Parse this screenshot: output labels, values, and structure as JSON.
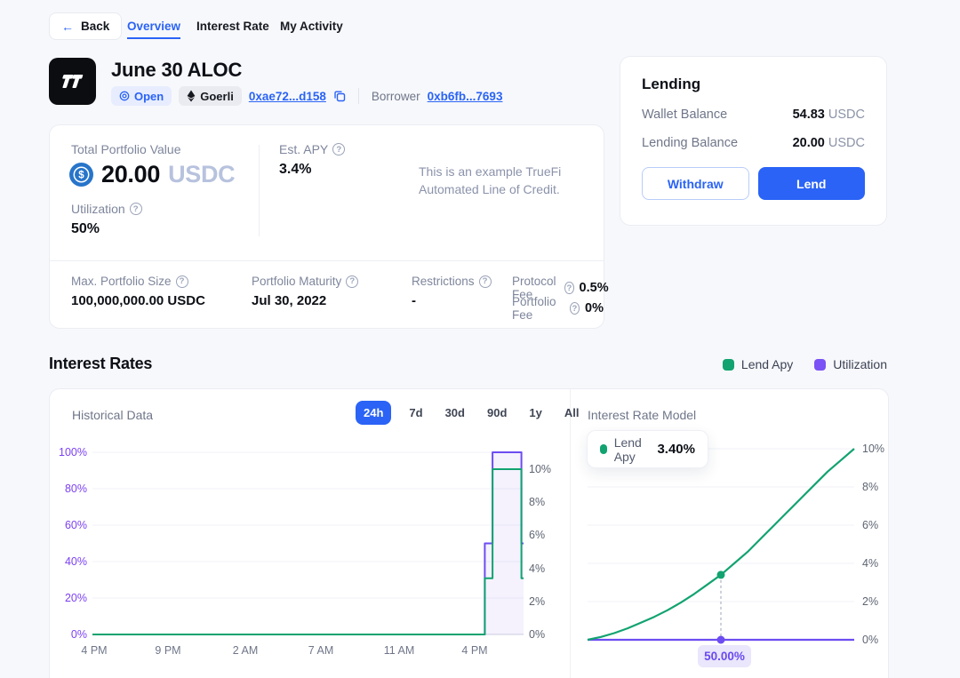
{
  "nav": {
    "back_label": "Back",
    "tabs": [
      {
        "label": "Overview",
        "active": true
      },
      {
        "label": "Interest Rate",
        "active": false
      },
      {
        "label": "My Activity",
        "active": false
      }
    ]
  },
  "header": {
    "title": "June 30 ALOC",
    "status_badge": "Open",
    "network_badge": "Goerli",
    "contract_address": "0xae72...d158",
    "borrower_label": "Borrower",
    "borrower_address": "0xb6fb...7693"
  },
  "lending_panel": {
    "title": "Lending",
    "wallet_balance_label": "Wallet Balance",
    "wallet_balance_value": "54.83",
    "wallet_balance_unit": "USDC",
    "lending_balance_label": "Lending Balance",
    "lending_balance_value": "20.00",
    "lending_balance_unit": "USDC",
    "withdraw_label": "Withdraw",
    "lend_label": "Lend"
  },
  "portfolio_card": {
    "total_value_label": "Total Portfolio Value",
    "currency_symbol": "$",
    "total_value": "20.00",
    "total_value_unit": "USDC",
    "utilization_label": "Utilization",
    "utilization_value": "50%",
    "apy_label": "Est. APY",
    "apy_value": "3.4%",
    "description_line1": "This is an example TrueFi",
    "description_line2": "Automated Line of Credit.",
    "max_size_label": "Max. Portfolio Size",
    "max_size_value": "100,000,000.00 USDC",
    "maturity_label": "Portfolio Maturity",
    "maturity_value": "Jul 30, 2022",
    "restrictions_label": "Restrictions",
    "restrictions_value": "-",
    "protocol_fee_label": "Protocol Fee",
    "protocol_fee_value": "0.5%",
    "portfolio_fee_label": "Portfolio Fee",
    "portfolio_fee_value": "0%"
  },
  "interest_section": {
    "heading": "Interest Rates",
    "legend": [
      {
        "label": "Lend Apy",
        "color": "#12a370"
      },
      {
        "label": "Utilization",
        "color": "#7a52f5"
      }
    ],
    "historical_label": "Historical Data",
    "ranges": [
      {
        "label": "24h",
        "active": true
      },
      {
        "label": "7d",
        "active": false
      },
      {
        "label": "30d",
        "active": false
      },
      {
        "label": "90d",
        "active": false
      },
      {
        "label": "1y",
        "active": false
      },
      {
        "label": "All",
        "active": false
      }
    ],
    "model_label": "Interest Rate Model",
    "tooltip_label": "Lend Apy",
    "tooltip_value": "3.40%",
    "marker_label": "50.00%"
  },
  "chart_data": [
    {
      "type": "line",
      "name": "historical-data",
      "title": "Historical Data",
      "time_range": "24h",
      "x_ticks": [
        "4 PM",
        "9 PM",
        "2 AM",
        "7 AM",
        "11 AM",
        "4 PM"
      ],
      "left_axis": {
        "label": "Utilization",
        "ticks": [
          "100%",
          "80%",
          "60%",
          "40%",
          "20%",
          "0%"
        ],
        "range": [
          0,
          100
        ]
      },
      "right_axis": {
        "label": "Lend APY",
        "ticks": [
          "10%",
          "8%",
          "6%",
          "4%",
          "2%",
          "0%"
        ],
        "range": [
          0,
          11
        ]
      },
      "series": [
        {
          "name": "Utilization",
          "axis": "left",
          "color": "#6d4cf2",
          "step_points": [
            [
              0,
              0
            ],
            [
              0.91,
              0
            ],
            [
              0.91,
              50
            ],
            [
              0.928,
              50
            ],
            [
              0.928,
              100
            ],
            [
              0.995,
              100
            ],
            [
              0.995,
              50
            ],
            [
              1,
              50
            ]
          ]
        },
        {
          "name": "Lend Apy",
          "axis": "right",
          "color": "#12a370",
          "step_points": [
            [
              0,
              0
            ],
            [
              0.91,
              0
            ],
            [
              0.91,
              3.4
            ],
            [
              0.928,
              3.4
            ],
            [
              0.928,
              10
            ],
            [
              0.995,
              10
            ],
            [
              0.995,
              3.4
            ],
            [
              1,
              3.4
            ]
          ]
        }
      ]
    },
    {
      "type": "line",
      "name": "interest-rate-model",
      "title": "Interest Rate Model",
      "x_axis": {
        "label": "Utilization",
        "range": [
          0,
          100
        ]
      },
      "y_axis": {
        "ticks": [
          "10%",
          "8%",
          "6%",
          "4%",
          "2%",
          "0%"
        ],
        "range": [
          0,
          10
        ]
      },
      "series": [
        {
          "name": "Lend Apy",
          "color": "#12a370",
          "points": [
            [
              0,
              0
            ],
            [
              5,
              0.15
            ],
            [
              10,
              0.35
            ],
            [
              15,
              0.6
            ],
            [
              20,
              0.9
            ],
            [
              25,
              1.2
            ],
            [
              30,
              1.55
            ],
            [
              35,
              1.95
            ],
            [
              40,
              2.4
            ],
            [
              45,
              2.9
            ],
            [
              50,
              3.4
            ],
            [
              55,
              4.0
            ],
            [
              60,
              4.6
            ],
            [
              65,
              5.3
            ],
            [
              70,
              6.0
            ],
            [
              75,
              6.7
            ],
            [
              80,
              7.4
            ],
            [
              85,
              8.1
            ],
            [
              90,
              8.8
            ],
            [
              95,
              9.4
            ],
            [
              100,
              10
            ]
          ]
        },
        {
          "name": "Utilization",
          "color": "#6d4cf2",
          "points": [
            [
              0,
              0
            ],
            [
              100,
              0
            ]
          ]
        }
      ],
      "marker": {
        "utilization": 50,
        "apy": 3.4,
        "label": "50.00%"
      }
    }
  ]
}
